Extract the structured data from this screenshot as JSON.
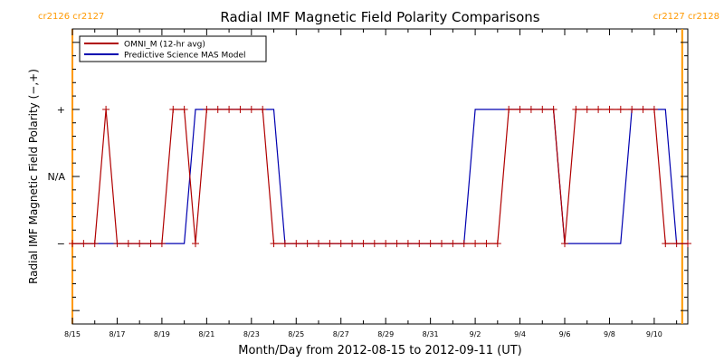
{
  "chart_data": {
    "type": "line",
    "title": "Radial IMF Magnetic Field Polarity Comparisons",
    "xlabel": "Month/Day from 2012-08-15 to 2012-09-11 (UT)",
    "ylabel": "Radial IMF Magnetic Field Polarity (−,+)",
    "x_unit": "days",
    "xlim": [
      "2012-08-15",
      "2012-09-11T12:00"
    ],
    "ylim": [
      -2.2,
      2.2
    ],
    "x_ticks": [
      "8/15",
      "8/17",
      "8/19",
      "8/21",
      "8/23",
      "8/25",
      "8/27",
      "8/29",
      "8/31",
      "9/2",
      "9/4",
      "9/6",
      "9/8",
      "9/10"
    ],
    "y_ticks": [
      {
        "label": "+",
        "value": 1
      },
      {
        "label": "N/A",
        "value": 0
      },
      {
        "label": "−",
        "value": -1
      }
    ],
    "grid": false,
    "legend_position": "top-left",
    "carrington_markers": [
      {
        "x": "2012-08-15",
        "labels": [
          "cr2126",
          "cr2127"
        ],
        "side": "left"
      },
      {
        "x": "2012-09-11T06:00",
        "labels": [
          "cr2127",
          "cr2128"
        ],
        "side": "right"
      }
    ],
    "series": [
      {
        "name": "OMNI_M (12-hr avg)",
        "color": "#b00000",
        "marker": "+",
        "x": [
          "2012-08-15T00:00",
          "2012-08-15T12:00",
          "2012-08-16T00:00",
          "2012-08-16T12:00",
          "2012-08-17T00:00",
          "2012-08-17T12:00",
          "2012-08-18T00:00",
          "2012-08-18T12:00",
          "2012-08-19T00:00",
          "2012-08-19T12:00",
          "2012-08-20T00:00",
          "2012-08-20T12:00",
          "2012-08-21T00:00",
          "2012-08-21T12:00",
          "2012-08-22T00:00",
          "2012-08-22T12:00",
          "2012-08-23T00:00",
          "2012-08-23T12:00",
          "2012-08-24T00:00",
          "2012-08-24T12:00",
          "2012-08-25T00:00",
          "2012-08-25T12:00",
          "2012-08-26T00:00",
          "2012-08-26T12:00",
          "2012-08-27T00:00",
          "2012-08-27T12:00",
          "2012-08-28T00:00",
          "2012-08-28T12:00",
          "2012-08-29T00:00",
          "2012-08-29T12:00",
          "2012-08-30T00:00",
          "2012-08-30T12:00",
          "2012-08-31T00:00",
          "2012-08-31T12:00",
          "2012-09-01T00:00",
          "2012-09-01T12:00",
          "2012-09-02T00:00",
          "2012-09-02T12:00",
          "2012-09-03T00:00",
          "2012-09-03T12:00",
          "2012-09-04T00:00",
          "2012-09-04T12:00",
          "2012-09-05T00:00",
          "2012-09-05T12:00",
          "2012-09-06T00:00",
          "2012-09-06T12:00",
          "2012-09-07T00:00",
          "2012-09-07T12:00",
          "2012-09-08T00:00",
          "2012-09-08T12:00",
          "2012-09-09T00:00",
          "2012-09-09T12:00",
          "2012-09-10T00:00",
          "2012-09-10T12:00",
          "2012-09-11T00:00",
          "2012-09-11T12:00"
        ],
        "values": [
          -1,
          -1,
          -1,
          1,
          -1,
          -1,
          -1,
          -1,
          -1,
          1,
          1,
          -1,
          1,
          1,
          1,
          1,
          1,
          1,
          -1,
          -1,
          -1,
          -1,
          -1,
          -1,
          -1,
          -1,
          -1,
          -1,
          -1,
          -1,
          -1,
          -1,
          -1,
          -1,
          -1,
          -1,
          -1,
          -1,
          -1,
          1,
          1,
          1,
          1,
          1,
          -1,
          1,
          1,
          1,
          1,
          1,
          1,
          1,
          1,
          -1,
          -1,
          -1
        ]
      },
      {
        "name": "Predictive Science MAS Model",
        "color": "#0000b0",
        "marker": "none",
        "x": [
          "2012-08-15T00:00",
          "2012-08-20T00:00",
          "2012-08-20T12:00",
          "2012-08-24T00:00",
          "2012-08-24T12:00",
          "2012-09-01T12:00",
          "2012-09-02T00:00",
          "2012-09-05T12:00",
          "2012-09-06T00:00",
          "2012-09-08T12:00",
          "2012-09-09T00:00",
          "2012-09-10T12:00",
          "2012-09-11T00:00",
          "2012-09-11T12:00"
        ],
        "values": [
          -1,
          -1,
          1,
          1,
          -1,
          -1,
          1,
          1,
          -1,
          -1,
          1,
          1,
          -1,
          -1
        ]
      }
    ]
  }
}
